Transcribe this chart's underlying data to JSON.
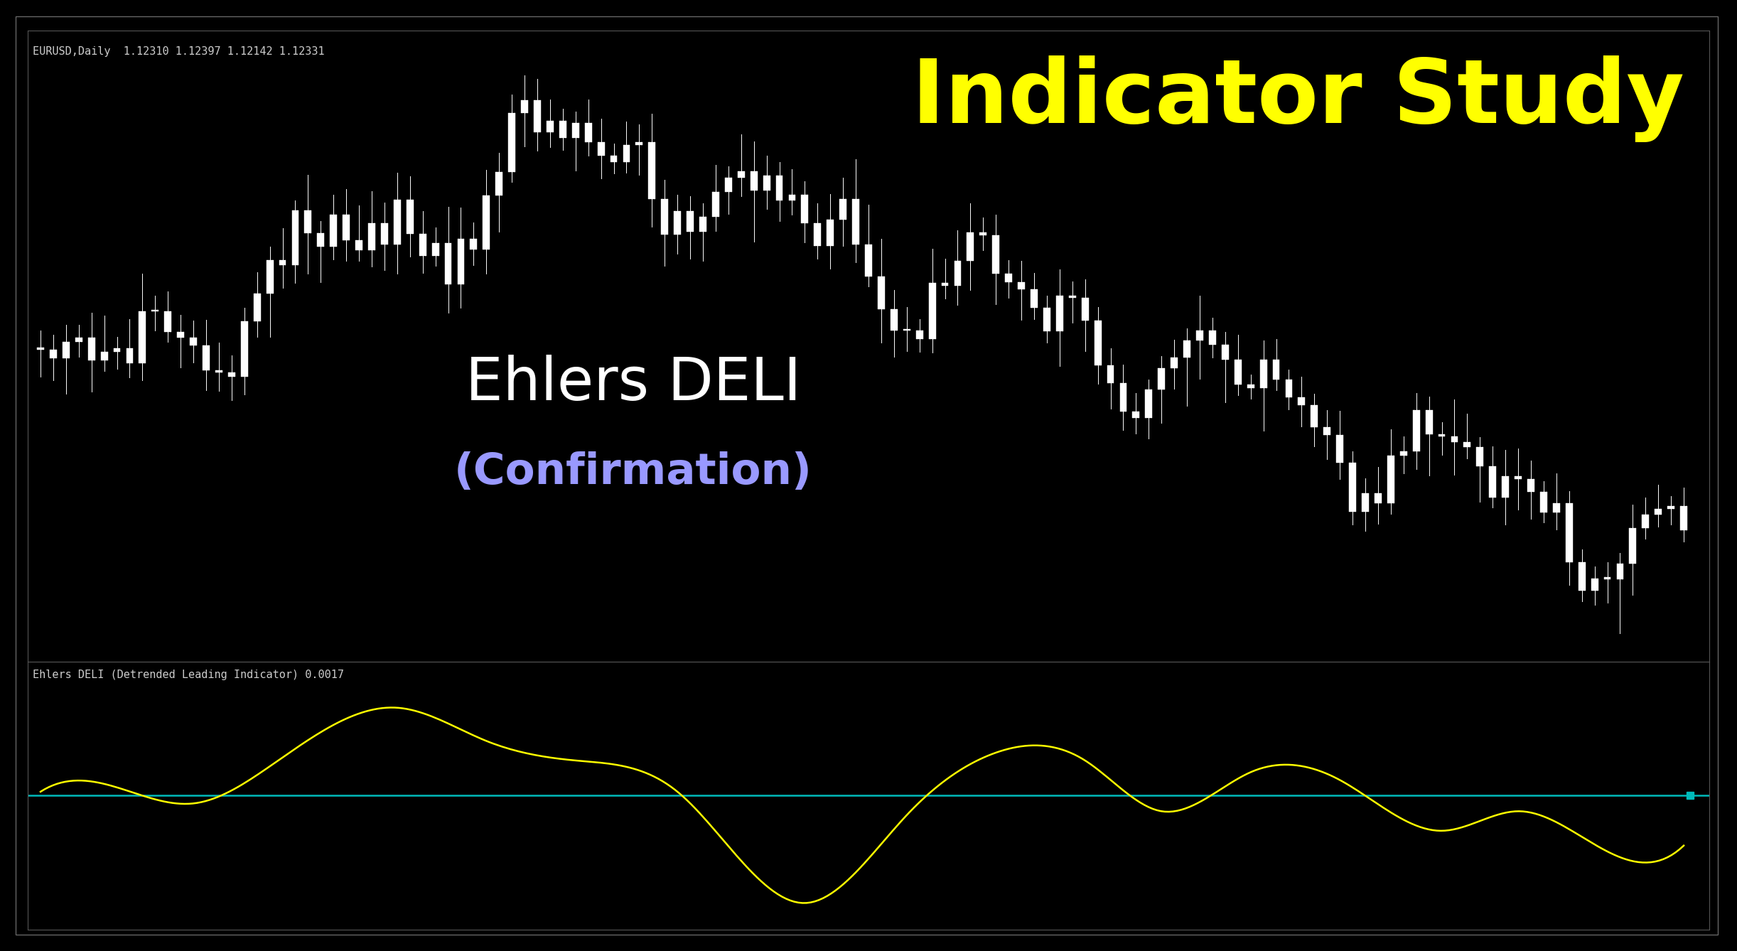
{
  "title_text": "Indicator Study",
  "title_color": "#FFFF00",
  "subtitle_text": "Ehlers DELI",
  "subtitle_color": "#FFFFFF",
  "confirmation_text": "(Confirmation)",
  "confirmation_color": "#9999FF",
  "background_color": "#000000",
  "upper_label": "EURUSD,Daily  1.12310 1.12397 1.12142 1.12331",
  "lower_label": "Ehlers DELI (Detrended Leading Indicator) 0.0017",
  "label_color": "#CCCCCC",
  "zero_line_color": "#00BBBB",
  "deli_line_color": "#FFFF00",
  "candle_color": "#FFFFFF",
  "border_color": "#555555",
  "title_fontsize": 90,
  "subtitle_fontsize": 60,
  "confirmation_fontsize": 44,
  "label_fontsize": 11,
  "outer_bg": "#111111"
}
